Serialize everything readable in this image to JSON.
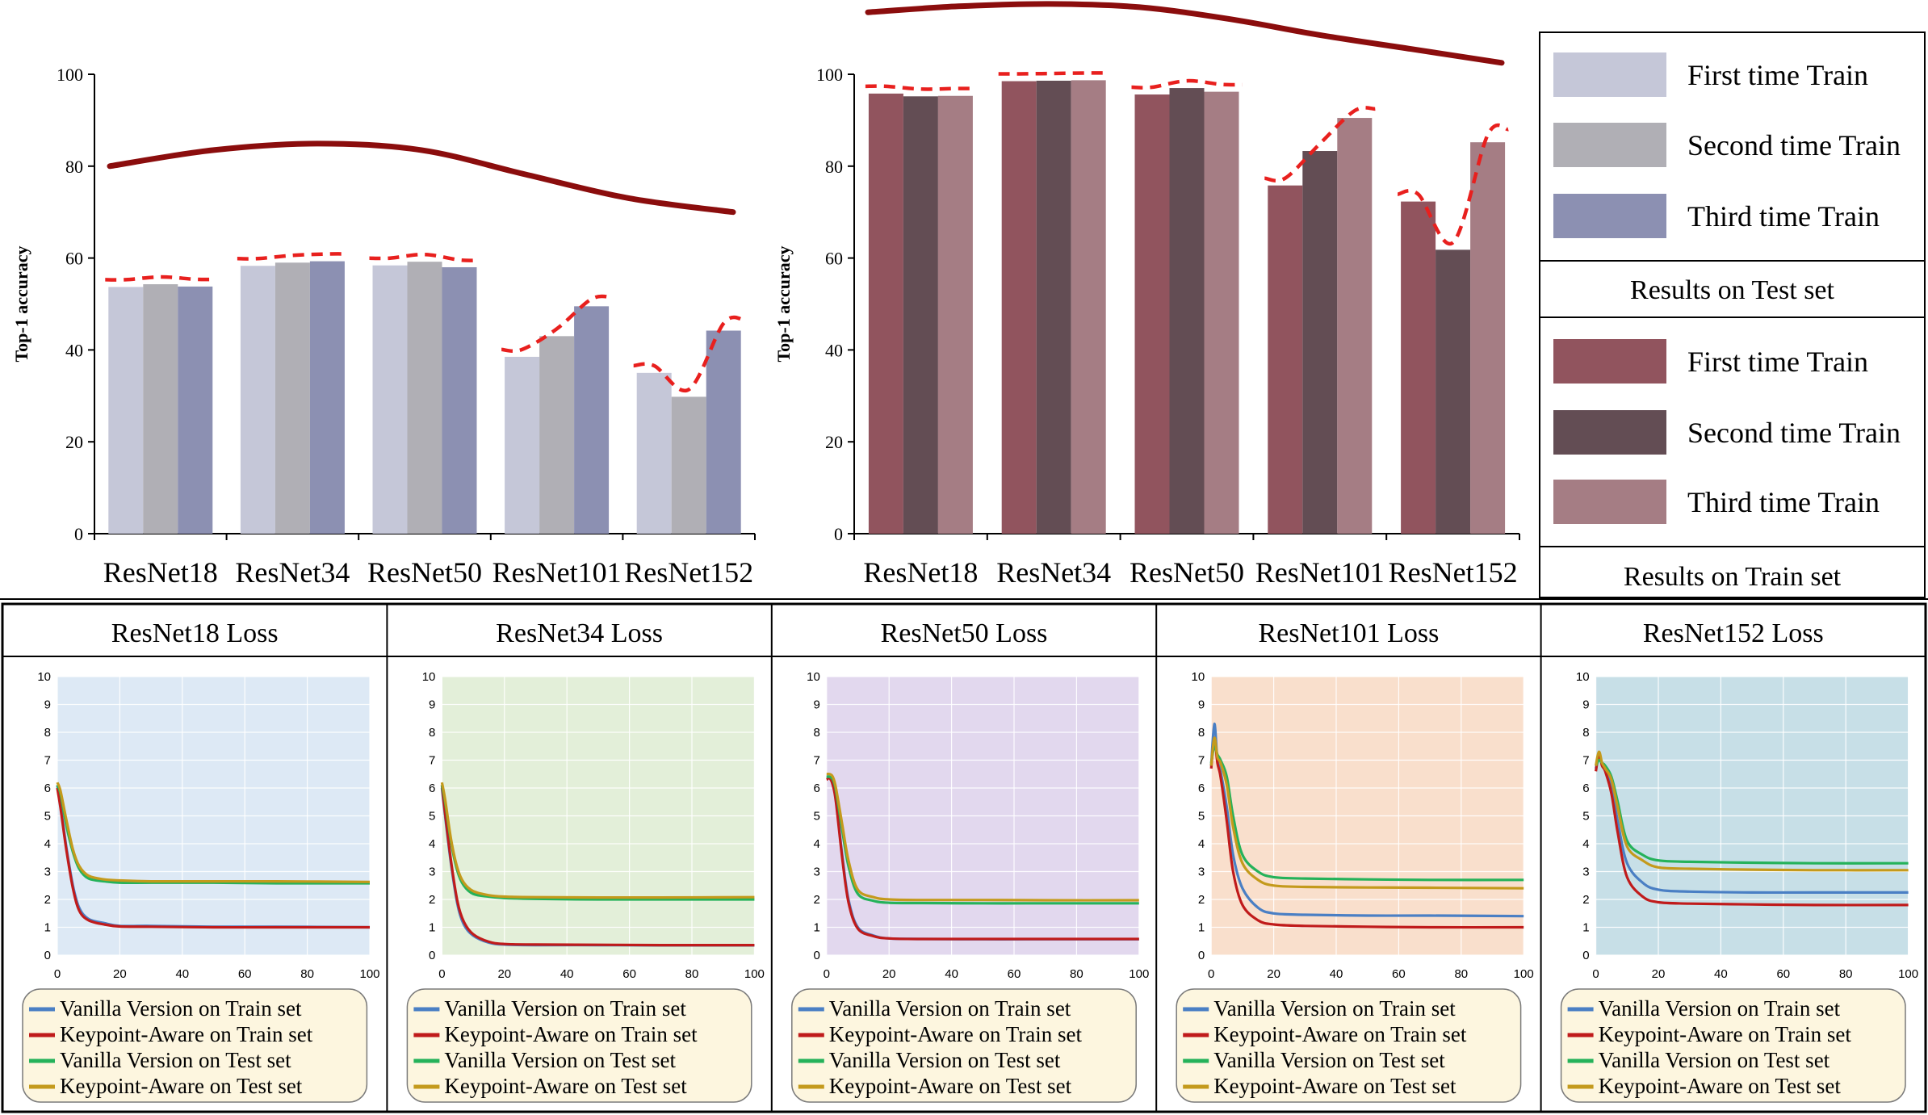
{
  "chart_data": [
    {
      "type": "bar",
      "ylabel": "Top-1 accuracy",
      "ylim": [
        0,
        100
      ],
      "yticks": [
        "0",
        "20",
        "40",
        "60",
        "80",
        "100"
      ],
      "categories": [
        "ResNet18",
        "ResNet34",
        "ResNet50",
        "ResNet101",
        "ResNet152"
      ],
      "series": [
        {
          "name": "First time Train",
          "color": "#c5c7d8",
          "values": [
            53.7,
            58.3,
            58.4,
            38.5,
            35.0
          ]
        },
        {
          "name": "Second time Train",
          "color": "#b0afb5",
          "values": [
            54.3,
            59.0,
            59.2,
            43.0,
            29.8
          ]
        },
        {
          "name": "Third time Train",
          "color": "#8c90b2",
          "values": [
            53.8,
            59.3,
            58.0,
            49.5,
            44.2
          ]
        }
      ],
      "trend_line_values": [
        80,
        83.5,
        84.9,
        83.5,
        78.2,
        73.0,
        70.0
      ]
    },
    {
      "type": "bar",
      "ylabel": "Top-1 accuracy",
      "ylim": [
        0,
        100
      ],
      "yticks": [
        "0",
        "20",
        "40",
        "60",
        "80",
        "100"
      ],
      "categories": [
        "ResNet18",
        "ResNet34",
        "ResNet50",
        "ResNet101",
        "ResNet152"
      ],
      "series": [
        {
          "name": "First time Train",
          "color": "#91545e",
          "values": [
            95.8,
            98.5,
            95.6,
            75.8,
            72.3
          ]
        },
        {
          "name": "Second time Train",
          "color": "#634d54",
          "values": [
            95.2,
            98.6,
            97.0,
            83.3,
            61.8
          ]
        },
        {
          "name": "Third time Train",
          "color": "#a57d84",
          "values": [
            95.3,
            98.7,
            96.2,
            90.5,
            85.2
          ]
        }
      ],
      "trend_line_values": [
        113.5,
        114.8,
        115.3,
        114.6,
        112.0,
        108.5,
        105.5,
        102.5
      ]
    },
    {
      "type": "line",
      "title": "ResNet18 Loss",
      "xlim": [
        0,
        100
      ],
      "ylim": [
        0,
        10
      ],
      "xticks": [
        "0",
        "20",
        "40",
        "60",
        "80",
        "100"
      ],
      "yticks": [
        "0",
        "1",
        "2",
        "3",
        "4",
        "5",
        "6",
        "7",
        "8",
        "9",
        "10"
      ],
      "background": "#dde9f5",
      "series": [
        {
          "name": "Vanilla Version on Train set",
          "color": "#4a7fc4",
          "x": [
            0,
            1,
            3,
            5,
            7,
            10,
            15,
            20,
            30,
            50,
            70,
            100
          ],
          "y": [
            6.1,
            5.4,
            3.8,
            2.5,
            1.7,
            1.3,
            1.15,
            1.05,
            1.05,
            1.02,
            1.02,
            1.0
          ]
        },
        {
          "name": "Keypoint-Aware on Train set",
          "color": "#c01b1b",
          "x": [
            0,
            1,
            3,
            5,
            7,
            10,
            15,
            20,
            30,
            50,
            70,
            100
          ],
          "y": [
            6.0,
            5.3,
            3.7,
            2.4,
            1.6,
            1.25,
            1.1,
            1.03,
            1.02,
            1.0,
            1.0,
            1.0
          ]
        },
        {
          "name": "Vanilla Version on Test set",
          "color": "#25b25a",
          "x": [
            0,
            1,
            3,
            5,
            7,
            10,
            15,
            20,
            30,
            50,
            70,
            100
          ],
          "y": [
            6.1,
            5.8,
            4.6,
            3.7,
            3.1,
            2.75,
            2.65,
            2.6,
            2.6,
            2.6,
            2.58,
            2.58
          ]
        },
        {
          "name": "Keypoint-Aware on Test set",
          "color": "#c49a1c",
          "x": [
            0,
            1,
            3,
            5,
            7,
            10,
            15,
            20,
            30,
            50,
            70,
            100
          ],
          "y": [
            6.2,
            5.9,
            4.8,
            3.8,
            3.2,
            2.85,
            2.72,
            2.68,
            2.65,
            2.65,
            2.65,
            2.63
          ]
        }
      ]
    },
    {
      "type": "line",
      "title": "ResNet34 Loss",
      "xlim": [
        0,
        100
      ],
      "ylim": [
        0,
        10
      ],
      "xticks": [
        "0",
        "20",
        "40",
        "60",
        "80",
        "100"
      ],
      "yticks": [
        "0",
        "1",
        "2",
        "3",
        "4",
        "5",
        "6",
        "7",
        "8",
        "9",
        "10"
      ],
      "background": "#e3efd9",
      "series": [
        {
          "name": "Vanilla Version on Train set",
          "color": "#4a7fc4",
          "x": [
            0,
            1,
            3,
            5,
            7,
            10,
            15,
            20,
            30,
            50,
            70,
            100
          ],
          "y": [
            6.0,
            5.0,
            3.2,
            1.8,
            1.1,
            0.7,
            0.45,
            0.38,
            0.36,
            0.36,
            0.35,
            0.35
          ]
        },
        {
          "name": "Keypoint-Aware on Train set",
          "color": "#c01b1b",
          "x": [
            0,
            1,
            3,
            5,
            7,
            10,
            15,
            20,
            30,
            50,
            70,
            100
          ],
          "y": [
            6.1,
            5.1,
            3.3,
            1.9,
            1.2,
            0.75,
            0.48,
            0.4,
            0.38,
            0.37,
            0.36,
            0.36
          ]
        },
        {
          "name": "Vanilla Version on Test set",
          "color": "#25b25a",
          "x": [
            0,
            1,
            3,
            5,
            7,
            10,
            15,
            20,
            30,
            50,
            70,
            100
          ],
          "y": [
            6.1,
            5.5,
            4.0,
            3.0,
            2.5,
            2.2,
            2.1,
            2.05,
            2.02,
            2.0,
            2.0,
            2.0
          ]
        },
        {
          "name": "Keypoint-Aware on Test set",
          "color": "#c49a1c",
          "x": [
            0,
            1,
            3,
            5,
            7,
            10,
            15,
            20,
            30,
            50,
            70,
            100
          ],
          "y": [
            6.2,
            5.6,
            4.1,
            3.1,
            2.6,
            2.3,
            2.15,
            2.1,
            2.08,
            2.07,
            2.07,
            2.08
          ]
        }
      ]
    },
    {
      "type": "line",
      "title": "ResNet50 Loss",
      "xlim": [
        0,
        100
      ],
      "ylim": [
        0,
        10
      ],
      "xticks": [
        "0",
        "20",
        "40",
        "60",
        "80",
        "100"
      ],
      "yticks": [
        "0",
        "1",
        "2",
        "3",
        "4",
        "5",
        "6",
        "7",
        "8",
        "9",
        "10"
      ],
      "background": "#e2d8ee",
      "series": [
        {
          "name": "Vanilla Version on Train set",
          "color": "#4a7fc4",
          "x": [
            0,
            1,
            2,
            3,
            5,
            7,
            10,
            15,
            20,
            30,
            50,
            70,
            100
          ],
          "y": [
            6.4,
            6.4,
            6.2,
            5.6,
            3.6,
            2.0,
            1.0,
            0.7,
            0.6,
            0.58,
            0.57,
            0.57,
            0.57
          ]
        },
        {
          "name": "Keypoint-Aware on Train set",
          "color": "#c01b1b",
          "x": [
            0,
            1,
            2,
            3,
            5,
            7,
            10,
            15,
            20,
            30,
            50,
            70,
            100
          ],
          "y": [
            6.3,
            6.35,
            6.1,
            5.5,
            3.5,
            1.9,
            0.95,
            0.68,
            0.6,
            0.58,
            0.58,
            0.58,
            0.58
          ]
        },
        {
          "name": "Vanilla Version on Test set",
          "color": "#25b25a",
          "x": [
            0,
            1,
            2,
            3,
            5,
            7,
            10,
            15,
            20,
            30,
            50,
            70,
            100
          ],
          "y": [
            6.4,
            6.4,
            6.3,
            5.9,
            4.5,
            3.2,
            2.2,
            1.95,
            1.88,
            1.87,
            1.86,
            1.86,
            1.86
          ]
        },
        {
          "name": "Keypoint-Aware on Test set",
          "color": "#c49a1c",
          "x": [
            0,
            1,
            2,
            3,
            5,
            7,
            10,
            15,
            20,
            30,
            50,
            70,
            100
          ],
          "y": [
            6.5,
            6.5,
            6.4,
            6.0,
            4.7,
            3.4,
            2.35,
            2.08,
            2.0,
            1.98,
            1.98,
            1.97,
            1.97
          ]
        }
      ]
    },
    {
      "type": "line",
      "title": "ResNet101 Loss",
      "xlim": [
        0,
        100
      ],
      "ylim": [
        0,
        10
      ],
      "xticks": [
        "0",
        "20",
        "40",
        "60",
        "80",
        "100"
      ],
      "yticks": [
        "0",
        "1",
        "2",
        "3",
        "4",
        "5",
        "6",
        "7",
        "8",
        "9",
        "10"
      ],
      "background": "#f9dfcc",
      "series": [
        {
          "name": "Vanilla Version on Train set",
          "color": "#4a7fc4",
          "x": [
            0,
            1,
            2,
            3,
            5,
            7,
            10,
            15,
            20,
            30,
            50,
            70,
            100
          ],
          "y": [
            6.8,
            8.3,
            7.0,
            6.6,
            5.3,
            3.6,
            2.4,
            1.7,
            1.5,
            1.45,
            1.42,
            1.42,
            1.4
          ]
        },
        {
          "name": "Keypoint-Aware on Train set",
          "color": "#c01b1b",
          "x": [
            0,
            1,
            2,
            3,
            5,
            7,
            10,
            15,
            20,
            30,
            50,
            70,
            100
          ],
          "y": [
            6.7,
            7.8,
            6.9,
            6.4,
            4.8,
            3.0,
            1.8,
            1.25,
            1.1,
            1.05,
            1.02,
            1.0,
            1.0
          ]
        },
        {
          "name": "Vanilla Version on Test set",
          "color": "#25b25a",
          "x": [
            0,
            1,
            2,
            3,
            5,
            7,
            10,
            15,
            20,
            30,
            50,
            70,
            100
          ],
          "y": [
            6.9,
            7.5,
            7.2,
            7.0,
            6.4,
            5.0,
            3.6,
            3.0,
            2.8,
            2.75,
            2.72,
            2.7,
            2.7
          ]
        },
        {
          "name": "Keypoint-Aware on Test set",
          "color": "#c49a1c",
          "x": [
            0,
            1,
            2,
            3,
            5,
            7,
            10,
            15,
            20,
            30,
            50,
            70,
            100
          ],
          "y": [
            6.8,
            7.8,
            7.1,
            6.9,
            6.1,
            4.6,
            3.3,
            2.7,
            2.5,
            2.45,
            2.43,
            2.42,
            2.4
          ]
        }
      ]
    },
    {
      "type": "line",
      "title": "ResNet152 Loss",
      "xlim": [
        0,
        100
      ],
      "ylim": [
        0,
        10
      ],
      "xticks": [
        "0",
        "20",
        "40",
        "60",
        "80",
        "100"
      ],
      "yticks": [
        "0",
        "1",
        "2",
        "3",
        "4",
        "5",
        "6",
        "7",
        "8",
        "9",
        "10"
      ],
      "background": "#c7dfe7",
      "series": [
        {
          "name": "Vanilla Version on Train set",
          "color": "#4a7fc4",
          "x": [
            0,
            1,
            2,
            3,
            5,
            7,
            10,
            15,
            20,
            30,
            50,
            70,
            100
          ],
          "y": [
            6.7,
            7.1,
            6.9,
            6.7,
            6.1,
            4.8,
            3.3,
            2.6,
            2.35,
            2.28,
            2.25,
            2.25,
            2.25
          ]
        },
        {
          "name": "Keypoint-Aware on Train set",
          "color": "#c01b1b",
          "x": [
            0,
            1,
            2,
            3,
            5,
            7,
            10,
            15,
            20,
            30,
            50,
            70,
            100
          ],
          "y": [
            6.6,
            7.2,
            6.8,
            6.6,
            5.8,
            4.4,
            2.8,
            2.1,
            1.9,
            1.85,
            1.82,
            1.8,
            1.8
          ]
        },
        {
          "name": "Vanilla Version on Test set",
          "color": "#25b25a",
          "x": [
            0,
            1,
            2,
            3,
            5,
            7,
            10,
            15,
            20,
            30,
            50,
            70,
            100
          ],
          "y": [
            6.8,
            7.0,
            6.9,
            6.8,
            6.4,
            5.5,
            4.1,
            3.6,
            3.4,
            3.35,
            3.32,
            3.3,
            3.3
          ]
        },
        {
          "name": "Keypoint-Aware on Test set",
          "color": "#c49a1c",
          "x": [
            0,
            1,
            2,
            3,
            5,
            7,
            10,
            15,
            20,
            30,
            50,
            70,
            100
          ],
          "y": [
            6.8,
            7.3,
            6.9,
            6.7,
            6.3,
            5.3,
            3.9,
            3.4,
            3.15,
            3.1,
            3.07,
            3.05,
            3.05
          ]
        }
      ]
    }
  ],
  "legend": {
    "test_heading": "Results on Test set",
    "train_heading": "Results on Train set"
  }
}
